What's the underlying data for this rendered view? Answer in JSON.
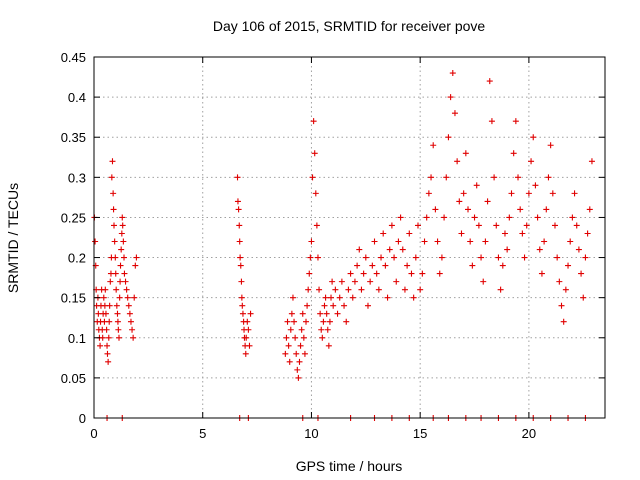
{
  "chart_data": {
    "type": "scatter",
    "title": "Day 106 of 2015, SRMTID for receiver pove",
    "xlabel": "GPS time / hours",
    "ylabel": "SRMTID / TECUs",
    "xlim": [
      0,
      23.5
    ],
    "ylim": [
      0,
      0.45
    ],
    "xticks": [
      0,
      5,
      10,
      15,
      20
    ],
    "xtick_labels": [
      "0",
      "5",
      "10",
      "15",
      "20"
    ],
    "yticks": [
      0,
      0.05,
      0.1,
      0.15,
      0.2,
      0.25,
      0.3,
      0.35,
      0.4,
      0.45
    ],
    "ytick_labels": [
      "0",
      "0.05",
      "0.1",
      "0.15",
      "0.2",
      "0.25",
      "0.3",
      "0.35",
      "0.4",
      "0.45"
    ],
    "grid": true,
    "marker": "plus",
    "color": "#e00000",
    "series": [
      {
        "name": "SRMTID",
        "x": [
          0.02,
          0.05,
          0.08,
          0.1,
          0.12,
          0.15,
          0.18,
          0.2,
          0.22,
          0.25,
          0.28,
          0.3,
          0.32,
          0.35,
          0.38,
          0.4,
          0.42,
          0.45,
          0.48,
          0.5,
          0.52,
          0.55,
          0.58,
          0.6,
          0.62,
          0.65,
          0.68,
          0.7,
          0.72,
          0.75,
          0.78,
          0.8,
          0.82,
          0.85,
          0.88,
          0.9,
          0.92,
          0.95,
          0.98,
          1.0,
          1.02,
          1.05,
          1.08,
          1.1,
          1.12,
          1.15,
          1.18,
          1.2,
          1.22,
          1.25,
          1.28,
          1.3,
          1.32,
          1.35,
          1.38,
          1.4,
          1.45,
          1.5,
          1.55,
          1.6,
          1.65,
          1.7,
          1.75,
          1.8,
          1.85,
          1.9,
          1.95,
          6.6,
          6.62,
          6.65,
          6.68,
          6.7,
          6.72,
          6.75,
          6.78,
          6.8,
          6.82,
          6.85,
          6.88,
          6.9,
          6.92,
          6.95,
          6.98,
          7.0,
          7.05,
          7.1,
          7.15,
          7.2,
          8.8,
          8.85,
          8.9,
          8.95,
          9.0,
          9.05,
          9.1,
          9.15,
          9.2,
          9.25,
          9.3,
          9.35,
          9.4,
          9.45,
          9.5,
          9.55,
          9.6,
          9.65,
          9.7,
          9.75,
          9.8,
          9.85,
          9.9,
          9.95,
          10.0,
          10.05,
          10.1,
          10.15,
          10.2,
          10.25,
          10.3,
          10.35,
          10.4,
          10.45,
          10.5,
          10.55,
          10.6,
          10.65,
          10.7,
          10.75,
          10.8,
          10.85,
          10.9,
          10.95,
          11.0,
          11.1,
          11.2,
          11.3,
          11.4,
          11.5,
          11.6,
          11.7,
          11.8,
          11.9,
          12.0,
          12.1,
          12.2,
          12.3,
          12.4,
          12.5,
          12.6,
          12.7,
          12.8,
          12.9,
          13.0,
          13.1,
          13.2,
          13.3,
          13.4,
          13.5,
          13.6,
          13.7,
          13.8,
          13.9,
          14.0,
          14.1,
          14.2,
          14.3,
          14.4,
          14.5,
          14.6,
          14.7,
          14.8,
          14.9,
          15.0,
          15.1,
          15.2,
          15.3,
          15.4,
          15.5,
          15.6,
          15.7,
          15.8,
          15.9,
          16.0,
          16.1,
          16.2,
          16.3,
          16.4,
          16.5,
          16.6,
          16.7,
          16.8,
          16.9,
          17.0,
          17.1,
          17.2,
          17.3,
          17.4,
          17.5,
          17.6,
          17.7,
          17.8,
          17.9,
          18.0,
          18.1,
          18.2,
          18.3,
          18.4,
          18.5,
          18.6,
          18.7,
          18.8,
          18.9,
          19.0,
          19.1,
          19.2,
          19.3,
          19.4,
          19.5,
          19.6,
          19.7,
          19.8,
          19.9,
          20.0,
          20.1,
          20.2,
          20.3,
          20.4,
          20.5,
          20.6,
          20.7,
          20.8,
          20.9,
          21.0,
          21.1,
          21.2,
          21.3,
          21.4,
          21.5,
          21.6,
          21.7,
          21.8,
          21.9,
          22.0,
          22.1,
          22.2,
          22.3,
          22.4,
          22.5,
          22.6,
          22.7,
          22.8,
          22.9,
          0.6,
          1.3,
          6.7,
          7.1,
          9.6,
          10.3,
          11.8,
          12.9,
          13.7,
          14.5,
          15.6,
          16.3,
          17.1,
          17.8,
          18.6,
          19.4,
          20.2,
          21.0,
          21.8,
          22.6
        ],
        "y": [
          0.25,
          0.22,
          0.19,
          0.16,
          0.14,
          0.12,
          0.15,
          0.13,
          0.11,
          0.1,
          0.09,
          0.12,
          0.14,
          0.16,
          0.11,
          0.1,
          0.13,
          0.15,
          0.12,
          0.14,
          0.16,
          0.13,
          0.11,
          0.09,
          0.08,
          0.07,
          0.1,
          0.12,
          0.14,
          0.17,
          0.18,
          0.2,
          0.3,
          0.32,
          0.28,
          0.26,
          0.24,
          0.22,
          0.2,
          0.18,
          0.16,
          0.14,
          0.13,
          0.12,
          0.11,
          0.1,
          0.15,
          0.17,
          0.19,
          0.21,
          0.23,
          0.25,
          0.24,
          0.22,
          0.2,
          0.18,
          0.17,
          0.16,
          0.15,
          0.14,
          0.13,
          0.12,
          0.11,
          0.1,
          0.15,
          0.19,
          0.2,
          0.3,
          0.27,
          0.26,
          0.24,
          0.22,
          0.2,
          0.19,
          0.17,
          0.15,
          0.14,
          0.13,
          0.12,
          0.11,
          0.1,
          0.09,
          0.08,
          0.1,
          0.12,
          0.11,
          0.09,
          0.13,
          0.08,
          0.1,
          0.12,
          0.09,
          0.07,
          0.11,
          0.13,
          0.15,
          0.12,
          0.1,
          0.08,
          0.06,
          0.05,
          0.07,
          0.09,
          0.11,
          0.13,
          0.1,
          0.08,
          0.12,
          0.14,
          0.16,
          0.18,
          0.2,
          0.22,
          0.3,
          0.37,
          0.33,
          0.28,
          0.24,
          0.2,
          0.16,
          0.13,
          0.11,
          0.1,
          0.12,
          0.14,
          0.15,
          0.13,
          0.11,
          0.09,
          0.12,
          0.15,
          0.17,
          0.14,
          0.16,
          0.13,
          0.15,
          0.17,
          0.14,
          0.12,
          0.16,
          0.18,
          0.15,
          0.17,
          0.19,
          0.21,
          0.16,
          0.18,
          0.2,
          0.14,
          0.17,
          0.19,
          0.22,
          0.18,
          0.16,
          0.2,
          0.23,
          0.19,
          0.15,
          0.21,
          0.24,
          0.2,
          0.17,
          0.22,
          0.25,
          0.21,
          0.16,
          0.19,
          0.23,
          0.18,
          0.15,
          0.2,
          0.24,
          0.16,
          0.18,
          0.22,
          0.25,
          0.28,
          0.3,
          0.34,
          0.26,
          0.22,
          0.18,
          0.2,
          0.25,
          0.3,
          0.35,
          0.4,
          0.43,
          0.38,
          0.32,
          0.27,
          0.23,
          0.28,
          0.33,
          0.26,
          0.22,
          0.19,
          0.25,
          0.29,
          0.24,
          0.2,
          0.17,
          0.22,
          0.27,
          0.42,
          0.37,
          0.3,
          0.24,
          0.2,
          0.16,
          0.19,
          0.23,
          0.21,
          0.25,
          0.28,
          0.33,
          0.37,
          0.3,
          0.26,
          0.23,
          0.2,
          0.24,
          0.28,
          0.32,
          0.35,
          0.29,
          0.25,
          0.21,
          0.18,
          0.22,
          0.26,
          0.3,
          0.34,
          0.28,
          0.24,
          0.2,
          0.17,
          0.14,
          0.12,
          0.16,
          0.19,
          0.22,
          0.25,
          0.28,
          0.24,
          0.21,
          0.18,
          0.15,
          0.2,
          0.23,
          0.26,
          0.32,
          0.0,
          0.0,
          0.0,
          0.0,
          0.0,
          0.0,
          0.0,
          0.0,
          0.0,
          0.0,
          0.0,
          0.0,
          0.0,
          0.0,
          0.0,
          0.0,
          0.0,
          0.0,
          0.0,
          0.0
        ]
      }
    ]
  }
}
